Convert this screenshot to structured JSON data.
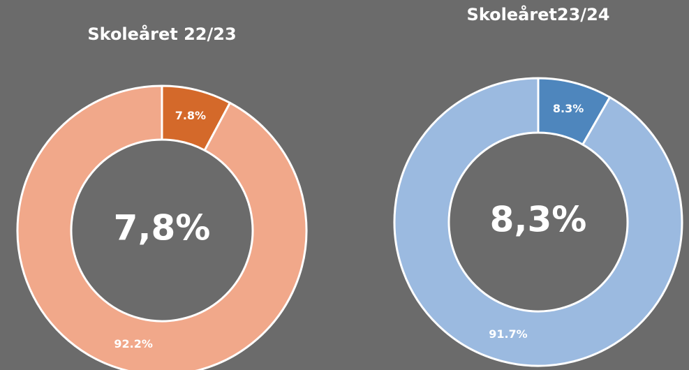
{
  "chart_data": [
    {
      "type": "donut",
      "title": "Skoleåret 22/23",
      "center_label": "7,8%",
      "values": [
        7.8,
        92.2
      ],
      "value_labels": [
        "7.8%",
        "92.2%"
      ],
      "colors": [
        "#d4692a",
        "#f1a88a"
      ]
    },
    {
      "type": "donut",
      "title": "Skoleåret23/24",
      "center_label": "8,3%",
      "values": [
        8.3,
        91.7
      ],
      "value_labels": [
        "8.3%",
        "91.7%"
      ],
      "colors": [
        "#4e86bd",
        "#9bbae0"
      ]
    }
  ]
}
